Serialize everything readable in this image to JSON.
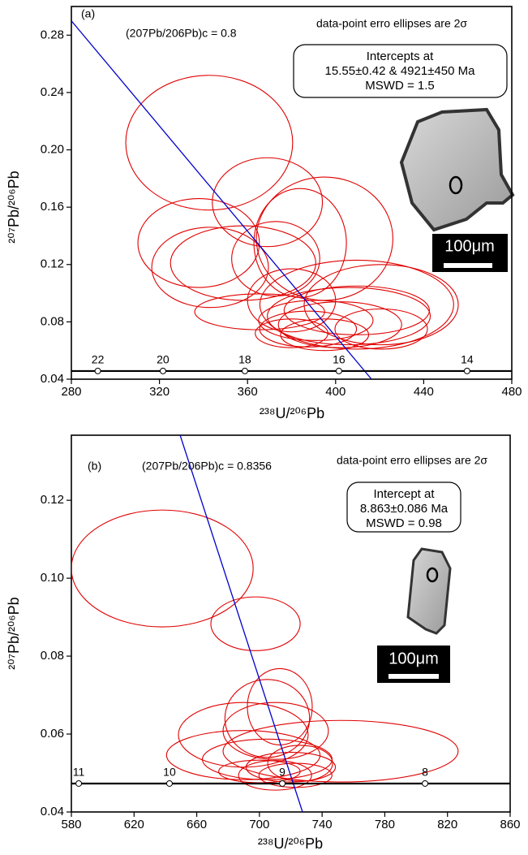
{
  "chart_data": [
    {
      "type": "ellipse",
      "panel_label": "(a)",
      "common_pb_label": "(207Pb/206Pb)c = 0.8",
      "ellipse_note": "data-point erro ellipses are 2σ",
      "intercept_box": [
        "Intercepts at",
        "15.55±0.42 & 4921±450 Ma",
        "MSWD = 1.5"
      ],
      "scale_bar": "100μm",
      "x_label": "²³⁸U/²⁰⁶Pb",
      "y_label": "²⁰⁷Pb/²⁰⁶Pb",
      "xlim": [
        280,
        480
      ],
      "ylim": [
        0.04,
        0.3
      ],
      "xticks": [
        280,
        320,
        360,
        400,
        440,
        480
      ],
      "yticks": [
        0.04,
        0.08,
        0.12,
        0.16,
        {
          "value": 0.2,
          "label": "0.20"
        },
        0.24,
        0.28
      ],
      "ellipses": {
        "color": "#e00000",
        "x": [
          342.6,
          369,
          337.8,
          343,
          358,
          372.8,
          383.9,
          395,
          380,
          409.6,
          420.7,
          409.6,
          365.5,
          391,
          402,
          420.7,
          387.5,
          395,
          380,
          406
        ],
        "y": [
          0.205,
          0.1635,
          0.135,
          0.118,
          0.121,
          0.124,
          0.135,
          0.138,
          0.095,
          0.092,
          0.092,
          0.088,
          0.087,
          0.081,
          0.078,
          0.075,
          0.075,
          0.071,
          0.072,
          0.084
        ],
        "x_err": [
          37.9,
          25,
          27.6,
          26.5,
          33,
          20,
          21,
          31,
          20,
          44,
          35,
          33,
          29.5,
          26,
          28,
          21,
          22,
          20,
          16.5,
          37
        ],
        "y_err": [
          0.047,
          0.031,
          0.031,
          0.028,
          0.026,
          0.026,
          0.038,
          0.043,
          0.022,
          0.031,
          0.028,
          0.017,
          0.0125,
          0.014,
          0.016,
          0.014,
          0.0125,
          0.011,
          0.01,
          0.02
        ]
      },
      "discordia": {
        "color": "#0000cc",
        "x": [
          280,
          416.3
        ],
        "y": [
          0.29,
          0.04
        ]
      },
      "concordia": {
        "color": "#000000",
        "y": 0.0457,
        "ages": [
          22,
          20,
          18,
          16,
          14
        ],
        "x": [
          292,
          321.6,
          358.8,
          401.5,
          459.7
        ]
      }
    },
    {
      "type": "ellipse",
      "panel_label": "(b)",
      "common_pb_label": "(207Pb/206Pb)c = 0.8356",
      "ellipse_note": "data-point erro ellipses are 2σ",
      "intercept_box": [
        "Intercept at",
        "8.863±0.086 Ma",
        "MSWD = 0.98"
      ],
      "scale_bar": "100μm",
      "x_label": "²³⁸U/²⁰⁶Pb",
      "y_label": "²⁰⁷Pb/²⁰⁶Pb",
      "xlim": [
        580,
        860
      ],
      "ylim": [
        0.04,
        0.1367
      ],
      "xticks": [
        580,
        620,
        660,
        700,
        740,
        780,
        820,
        860
      ],
      "yticks": [
        0.04,
        0.06,
        0.08,
        {
          "value": 0.1,
          "label": "0.10"
        },
        0.12
      ],
      "ellipses": {
        "color": "#e00000",
        "x": [
          638,
          697.5,
          705,
          713,
          689.7,
          710.4,
          689.7,
          751.8,
          705,
          720,
          723,
          710,
          700,
          726
        ],
        "y": [
          0.1025,
          0.0883,
          0.064,
          0.067,
          0.0598,
          0.0608,
          0.0546,
          0.0556,
          0.0535,
          0.0515,
          0.0494,
          0.0494,
          0.0504,
          0.0525
        ],
        "x_err": [
          58,
          28.5,
          27,
          20.7,
          41.4,
          33.6,
          49,
          75,
          41.4,
          28.5,
          23.3,
          23.3,
          26,
          20.7
        ],
        "y_err": [
          0.015,
          0.0069,
          0.01,
          0.0098,
          0.0083,
          0.0073,
          0.0063,
          0.0079,
          0.0052,
          0.0038,
          0.0031,
          0.0038,
          0.0029,
          0.0046
        ]
      },
      "discordia": {
        "color": "#0000cc",
        "x": [
          649.4,
          727.5
        ],
        "y": [
          0.1367,
          0.04
        ]
      },
      "concordia": {
        "color": "#000000",
        "y": 0.0473,
        "ages": [
          11,
          10,
          9,
          8
        ],
        "x": [
          584.7,
          642.6,
          714.6,
          805.7
        ]
      }
    }
  ]
}
